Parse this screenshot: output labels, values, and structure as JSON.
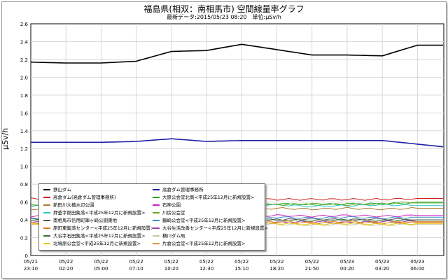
{
  "chart_data": {
    "type": "line",
    "title": "福島県(相双：南相馬市) 空間線量率グラフ",
    "subtitle": "最新データ:2015/05/23 08:20　単位:μSv/h",
    "ylabel": "μSv/h",
    "ylim": [
      0,
      2.6
    ],
    "yticks": [
      "0",
      "0.2",
      "0.4",
      "0.6",
      "0.8",
      "1.0",
      "1.2",
      "1.4",
      "1.6",
      "1.8",
      "2.0",
      "2.2",
      "2.4",
      "2.6"
    ],
    "grid": true,
    "legend_position": "bottom-left",
    "x": [
      [
        "05/21",
        "23:10"
      ],
      [
        "05/22",
        "02:20"
      ],
      [
        "05/22",
        "05:00"
      ],
      [
        "05/22",
        "07:10"
      ],
      [
        "05/22",
        "10:20"
      ],
      [
        "05/22",
        "12:30"
      ],
      [
        "05/22",
        "15:10"
      ],
      [
        "05/22",
        "18:20"
      ],
      [
        "05/22",
        "21:50"
      ],
      [
        "05/23",
        "00:20"
      ],
      [
        "05/23",
        "03:20"
      ],
      [
        "05/23",
        "06:00"
      ]
    ],
    "series": [
      {
        "name": "鉄山ダム",
        "color": "#000000",
        "values": [
          2.17,
          2.16,
          2.16,
          2.18,
          2.29,
          2.3,
          2.37,
          2.31,
          2.25,
          2.25,
          2.24,
          2.36
        ]
      },
      {
        "name": "高倉ダム管理事務所",
        "color": "#1f1fa8",
        "values": [
          1.27,
          1.27,
          1.27,
          1.28,
          1.31,
          1.28,
          1.29,
          1.29,
          1.29,
          1.29,
          1.29,
          1.25
        ]
      },
      {
        "name": "高倉ダム(高倉ダム管理事務所)",
        "color": "#cc1f1f",
        "values": [
          0.64,
          0.64,
          0.64,
          0.64,
          0.64,
          0.64,
          0.63,
          0.63,
          0.63,
          0.63,
          0.63,
          0.64
        ]
      },
      {
        "name": "大原公会堂北側<平成25年12月に新規設置>",
        "color": "#22aa22",
        "values": [
          0.57,
          0.58,
          0.57,
          0.58,
          0.57,
          0.58,
          0.57,
          0.58,
          0.57,
          0.58,
          0.58,
          0.59
        ]
      },
      {
        "name": "新田川大橋水辺公園",
        "color": "#b07a2a",
        "values": [
          0.52,
          0.53,
          0.52,
          0.52,
          0.53,
          0.52,
          0.52,
          0.53,
          0.52,
          0.53,
          0.52,
          0.53
        ]
      },
      {
        "name": "石神公園",
        "color": "#d020c0",
        "values": [
          0.44,
          0.45,
          0.44,
          0.45,
          0.44,
          0.45,
          0.44,
          0.45,
          0.44,
          0.45,
          0.44,
          0.45
        ]
      },
      {
        "name": "押釜字館田集落<平成25年12月に新規設置>",
        "color": "#28c8c8",
        "values": [
          0.55,
          0.56,
          0.55,
          0.57,
          0.56,
          0.55,
          0.56,
          0.57,
          0.55,
          0.56,
          0.57,
          0.56
        ]
      },
      {
        "name": "川房公会堂",
        "color": "#6aa82a",
        "values": [
          0.56,
          0.57,
          0.56,
          0.58,
          0.57,
          0.58,
          0.56,
          0.57,
          0.58,
          0.57,
          0.58,
          0.6
        ]
      },
      {
        "name": "南相馬市信用町陣ヶ崎公園東地",
        "color": "#5a5a5a",
        "values": [
          0.41,
          0.4,
          0.41,
          0.4,
          0.41,
          0.4,
          0.41,
          0.4,
          0.41,
          0.4,
          0.41,
          0.4
        ]
      },
      {
        "name": "鶴崎公会堂<平成25年12月に新規設置>",
        "color": "#3a8ac8",
        "values": [
          0.42,
          0.43,
          0.42,
          0.43,
          0.42,
          0.43,
          0.42,
          0.43,
          0.42,
          0.43,
          0.42,
          0.43
        ]
      },
      {
        "name": "原町東集落センター<平成25年12月に新規設置>",
        "color": "#e07a20",
        "values": [
          0.36,
          0.37,
          0.36,
          0.37,
          0.36,
          0.37,
          0.36,
          0.37,
          0.36,
          0.37,
          0.36,
          0.37
        ]
      },
      {
        "name": "大谷生活改善センター<平成25年12月に新規設置>",
        "color": "#9a3ab0",
        "values": [
          0.38,
          0.37,
          0.38,
          0.37,
          0.38,
          0.37,
          0.38,
          0.37,
          0.38,
          0.37,
          0.38,
          0.38
        ]
      },
      {
        "name": "大谷字石田集落<平成25年12月に新規設置>",
        "color": "#3a6a3a",
        "values": [
          0.39,
          0.4,
          0.39,
          0.4,
          0.39,
          0.4,
          0.39,
          0.4,
          0.39,
          0.4,
          0.39,
          0.4
        ]
      },
      {
        "name": "横川ダム局",
        "color": "#c8c8a0",
        "values": [
          0.34,
          0.35,
          0.34,
          0.35,
          0.34,
          0.35,
          0.34,
          0.35,
          0.34,
          0.35,
          0.34,
          0.35
        ]
      },
      {
        "name": "北鳩原公会堂<平成25年12月に新規設置>",
        "color": "#e8c800",
        "values": [
          0.35,
          0.36,
          0.35,
          0.36,
          0.35,
          0.36,
          0.35,
          0.36,
          0.35,
          0.36,
          0.35,
          0.36
        ]
      },
      {
        "name": "片倉公会堂<平成25年12月に新規設置>",
        "color": "#e8903a",
        "values": [
          0.37,
          0.38,
          0.37,
          0.38,
          0.37,
          0.38,
          0.37,
          0.38,
          0.37,
          0.38,
          0.37,
          0.38
        ]
      }
    ],
    "legend_order": [
      [
        "鉄山ダム",
        "高倉ダム管理事務所"
      ],
      [
        "高倉ダム(高倉ダム管理事務所)",
        "大原公会堂北側<平成25年12月に新規設置>"
      ],
      [
        "新田川大橋水辺公園",
        "石神公園"
      ],
      [
        "押釜字館田集落<平成25年12月に新規設置>",
        "川房公会堂"
      ],
      [
        "南相馬市信用町陣ヶ崎公園東地",
        "鶴崎公会堂<平成25年12月に新規設置>"
      ],
      [
        "原町東集落センター<平成25年12月に新規設置>",
        "大谷生活改善センター<平成25年12月に新規設置>"
      ],
      [
        "大谷字石田集落<平成25年12月に新規設置>",
        "横川ダム局"
      ],
      [
        "北鳩原公会堂<平成25年12月に新規設置>",
        "片倉公会堂<平成25年12月に新規設置>"
      ]
    ]
  }
}
